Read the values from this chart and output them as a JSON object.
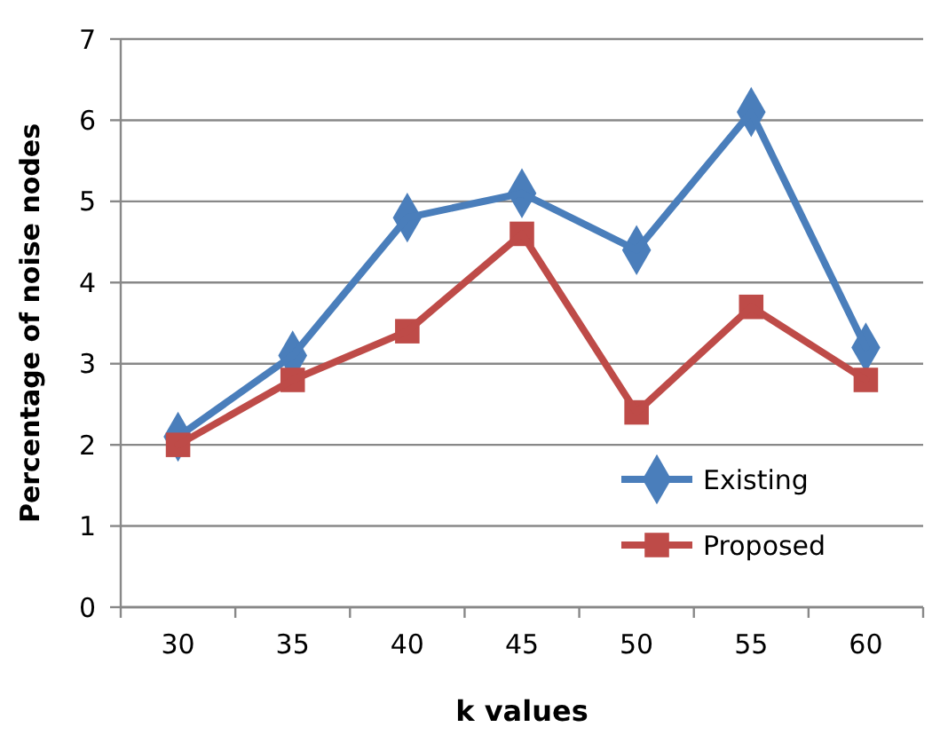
{
  "chart_data": {
    "type": "line",
    "xlabel": "k values",
    "ylabel": "Percentage of noise nodes",
    "categories": [
      "30",
      "35",
      "40",
      "45",
      "50",
      "55",
      "60"
    ],
    "series": [
      {
        "name": "Existing",
        "color": "#4a7ebb",
        "marker": "diamond",
        "values": [
          2.1,
          3.1,
          4.8,
          5.1,
          4.4,
          6.1,
          3.2
        ]
      },
      {
        "name": "Proposed",
        "color": "#be4b48",
        "marker": "square",
        "values": [
          2.0,
          2.8,
          3.4,
          4.6,
          2.4,
          3.7,
          2.8
        ]
      }
    ],
    "ylim": [
      0,
      7
    ],
    "yticks": [
      0,
      1,
      2,
      3,
      4,
      5,
      6,
      7
    ],
    "grid": "y",
    "legend": "bottom right"
  }
}
